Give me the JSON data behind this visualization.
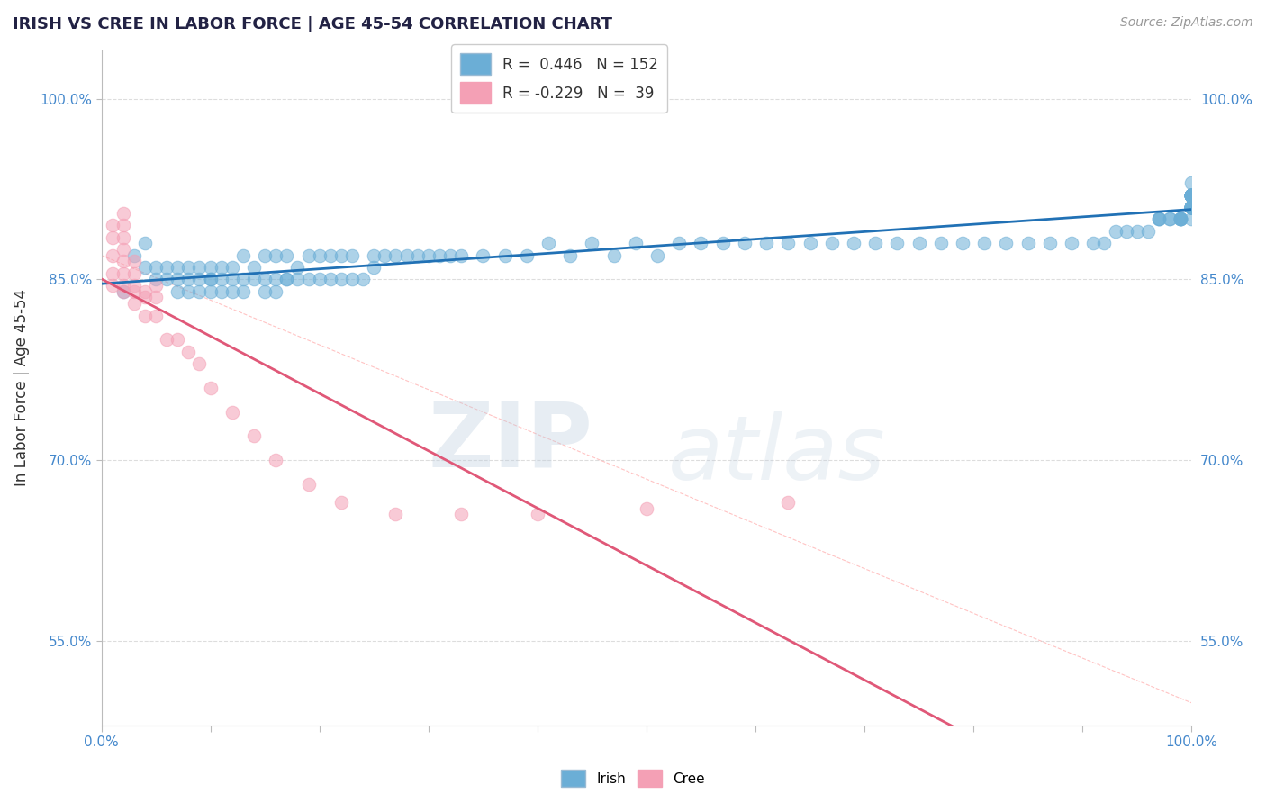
{
  "title": "IRISH VS CREE IN LABOR FORCE | AGE 45-54 CORRELATION CHART",
  "source": "Source: ZipAtlas.com",
  "ylabel": "In Labor Force | Age 45-54",
  "xlim": [
    0.0,
    1.0
  ],
  "ylim": [
    0.48,
    1.04
  ],
  "yticks": [
    0.55,
    0.7,
    0.85,
    1.0
  ],
  "ytick_labels": [
    "55.0%",
    "70.0%",
    "85.0%",
    "100.0%"
  ],
  "xtick_positions": [
    0.0,
    0.1,
    0.2,
    0.3,
    0.4,
    0.5,
    0.6,
    0.7,
    0.8,
    0.9,
    1.0
  ],
  "xtick_labels_sparse": {
    "0.0": "0.0%",
    "1.0": "100.0%"
  },
  "irish_R": 0.446,
  "irish_N": 152,
  "cree_R": -0.229,
  "cree_N": 39,
  "irish_color": "#6BAED6",
  "cree_color": "#F4A0B5",
  "irish_line_color": "#2171B5",
  "cree_line_color": "#E05878",
  "diag_line_color": "#F4A0B5",
  "title_color": "#222244",
  "source_color": "#999999",
  "label_color": "#4488CC",
  "background_color": "#FFFFFF",
  "grid_color": "#DDDDDD",
  "irish_x": [
    0.02,
    0.03,
    0.04,
    0.04,
    0.05,
    0.05,
    0.06,
    0.06,
    0.07,
    0.07,
    0.07,
    0.08,
    0.08,
    0.08,
    0.09,
    0.09,
    0.09,
    0.1,
    0.1,
    0.1,
    0.1,
    0.11,
    0.11,
    0.11,
    0.12,
    0.12,
    0.12,
    0.13,
    0.13,
    0.13,
    0.14,
    0.14,
    0.15,
    0.15,
    0.15,
    0.16,
    0.16,
    0.16,
    0.17,
    0.17,
    0.17,
    0.18,
    0.18,
    0.19,
    0.19,
    0.2,
    0.2,
    0.21,
    0.21,
    0.22,
    0.22,
    0.23,
    0.23,
    0.24,
    0.25,
    0.25,
    0.26,
    0.27,
    0.28,
    0.29,
    0.3,
    0.31,
    0.32,
    0.33,
    0.35,
    0.37,
    0.39,
    0.41,
    0.43,
    0.45,
    0.47,
    0.49,
    0.51,
    0.53,
    0.55,
    0.57,
    0.59,
    0.61,
    0.63,
    0.65,
    0.67,
    0.69,
    0.71,
    0.73,
    0.75,
    0.77,
    0.79,
    0.81,
    0.83,
    0.85,
    0.87,
    0.89,
    0.91,
    0.92,
    0.93,
    0.94,
    0.95,
    0.96,
    0.97,
    0.97,
    0.97,
    0.98,
    0.98,
    0.99,
    0.99,
    0.99,
    0.99,
    0.99,
    1.0,
    1.0,
    1.0,
    1.0,
    1.0,
    1.0,
    1.0,
    1.0,
    1.0,
    1.0,
    1.0,
    1.0,
    1.0,
    1.0,
    1.0,
    1.0,
    1.0,
    1.0,
    1.0,
    1.0,
    1.0,
    1.0,
    1.0,
    1.0,
    1.0,
    1.0,
    1.0,
    1.0,
    1.0,
    1.0,
    1.0,
    1.0,
    1.0,
    1.0,
    1.0,
    1.0,
    1.0,
    1.0,
    1.0,
    1.0,
    1.0,
    1.0
  ],
  "irish_y": [
    0.84,
    0.87,
    0.86,
    0.88,
    0.85,
    0.86,
    0.85,
    0.86,
    0.84,
    0.85,
    0.86,
    0.84,
    0.85,
    0.86,
    0.84,
    0.85,
    0.86,
    0.84,
    0.85,
    0.85,
    0.86,
    0.84,
    0.85,
    0.86,
    0.84,
    0.85,
    0.86,
    0.84,
    0.85,
    0.87,
    0.85,
    0.86,
    0.84,
    0.85,
    0.87,
    0.84,
    0.85,
    0.87,
    0.85,
    0.85,
    0.87,
    0.85,
    0.86,
    0.85,
    0.87,
    0.85,
    0.87,
    0.85,
    0.87,
    0.85,
    0.87,
    0.85,
    0.87,
    0.85,
    0.86,
    0.87,
    0.87,
    0.87,
    0.87,
    0.87,
    0.87,
    0.87,
    0.87,
    0.87,
    0.87,
    0.87,
    0.87,
    0.88,
    0.87,
    0.88,
    0.87,
    0.88,
    0.87,
    0.88,
    0.88,
    0.88,
    0.88,
    0.88,
    0.88,
    0.88,
    0.88,
    0.88,
    0.88,
    0.88,
    0.88,
    0.88,
    0.88,
    0.88,
    0.88,
    0.88,
    0.88,
    0.88,
    0.88,
    0.88,
    0.89,
    0.89,
    0.89,
    0.89,
    0.9,
    0.9,
    0.9,
    0.9,
    0.9,
    0.9,
    0.9,
    0.9,
    0.9,
    0.9,
    0.9,
    0.91,
    0.91,
    0.91,
    0.91,
    0.91,
    0.91,
    0.91,
    0.91,
    0.91,
    0.91,
    0.91,
    0.91,
    0.91,
    0.91,
    0.91,
    0.91,
    0.91,
    0.91,
    0.92,
    0.92,
    0.92,
    0.92,
    0.92,
    0.92,
    0.92,
    0.92,
    0.92,
    0.92,
    0.92,
    0.92,
    0.92,
    0.92,
    0.92,
    0.92,
    0.92,
    0.92,
    0.92,
    0.93,
    0.92,
    0.92,
    0.92
  ],
  "cree_x": [
    0.01,
    0.01,
    0.01,
    0.01,
    0.01,
    0.02,
    0.02,
    0.02,
    0.02,
    0.02,
    0.02,
    0.02,
    0.02,
    0.03,
    0.03,
    0.03,
    0.03,
    0.03,
    0.04,
    0.04,
    0.04,
    0.05,
    0.05,
    0.05,
    0.06,
    0.07,
    0.08,
    0.09,
    0.1,
    0.12,
    0.14,
    0.16,
    0.19,
    0.22,
    0.27,
    0.33,
    0.4,
    0.5,
    0.63
  ],
  "cree_y": [
    0.845,
    0.855,
    0.87,
    0.885,
    0.895,
    0.84,
    0.845,
    0.855,
    0.865,
    0.875,
    0.885,
    0.895,
    0.905,
    0.83,
    0.84,
    0.845,
    0.855,
    0.865,
    0.82,
    0.835,
    0.84,
    0.82,
    0.835,
    0.845,
    0.8,
    0.8,
    0.79,
    0.78,
    0.76,
    0.74,
    0.72,
    0.7,
    0.68,
    0.665,
    0.655,
    0.655,
    0.655,
    0.66,
    0.665
  ]
}
